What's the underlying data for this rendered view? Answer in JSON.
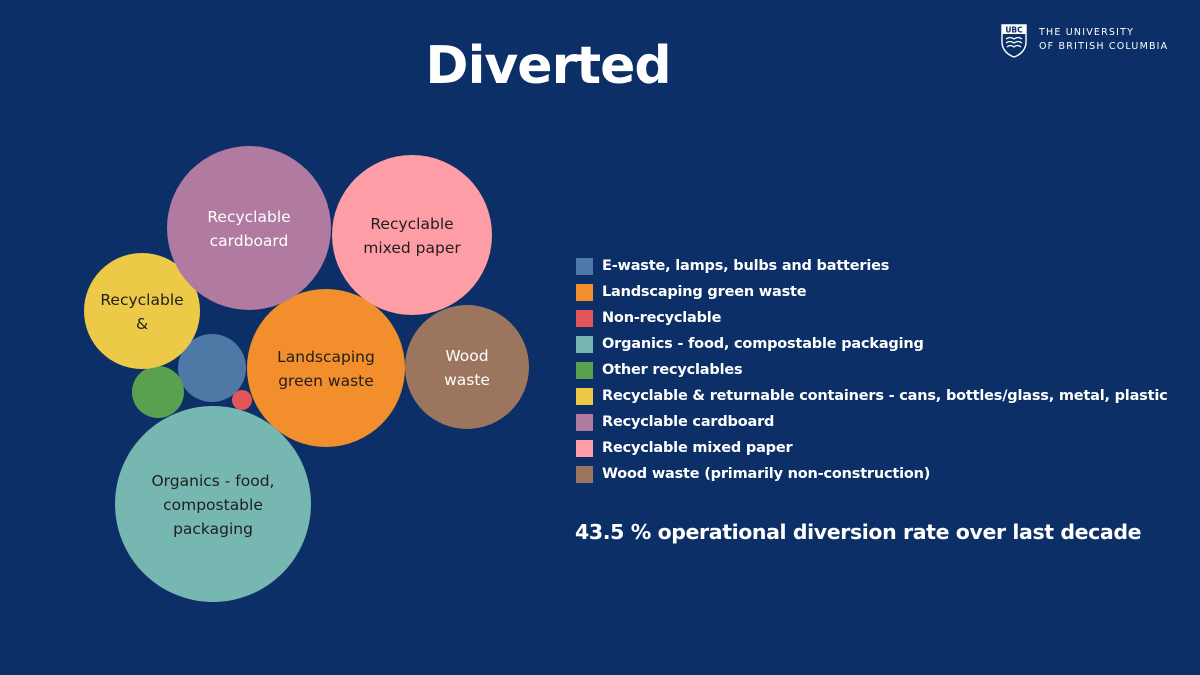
{
  "slide": {
    "title": "Diverted",
    "background": "#0b2f66",
    "stat_text": "43.5 % operational diversion rate over last decade"
  },
  "logo": {
    "icon": "ubc-crest-icon",
    "badge": "UBC",
    "line1": "THE UNIVERSITY",
    "line2": "OF BRITISH COLUMBIA"
  },
  "chart_data": {
    "type": "bubble",
    "legend_position": "right",
    "categories": [
      {
        "key": "ewaste",
        "legend": "E-waste, lamps, bulbs and batteries",
        "color": "#4e79a7",
        "label": [
          "",
          ""
        ]
      },
      {
        "key": "landscaping",
        "legend": "Landscaping green waste",
        "color": "#f28e2b",
        "label": [
          "Landscaping",
          "green waste"
        ]
      },
      {
        "key": "nonrecyclable",
        "legend": "Non-recyclable",
        "color": "#e15759",
        "label": [
          "",
          ""
        ]
      },
      {
        "key": "organics",
        "legend": "Organics - food, compostable packaging",
        "color": "#76b7b2",
        "label": [
          "Organics - food,",
          "compostable",
          "packaging"
        ]
      },
      {
        "key": "other",
        "legend": "Other recyclables",
        "color": "#59a14f",
        "label": [
          "",
          ""
        ]
      },
      {
        "key": "containers",
        "legend": "Recyclable & returnable containers - cans, bottles/glass, metal, plastic",
        "color": "#edc948",
        "label": [
          "Recyclable",
          "&"
        ]
      },
      {
        "key": "cardboard",
        "legend": "Recyclable cardboard",
        "color": "#b07aa1",
        "label": [
          "Recyclable",
          "cardboard"
        ]
      },
      {
        "key": "mixedpaper",
        "legend": "Recyclable mixed paper",
        "color": "#ff9da7",
        "label": [
          "Recyclable",
          "mixed paper"
        ]
      },
      {
        "key": "wood",
        "legend": "Wood waste (primarily non-construction)",
        "color": "#9c755f",
        "label": [
          "Wood",
          "waste"
        ]
      }
    ]
  }
}
